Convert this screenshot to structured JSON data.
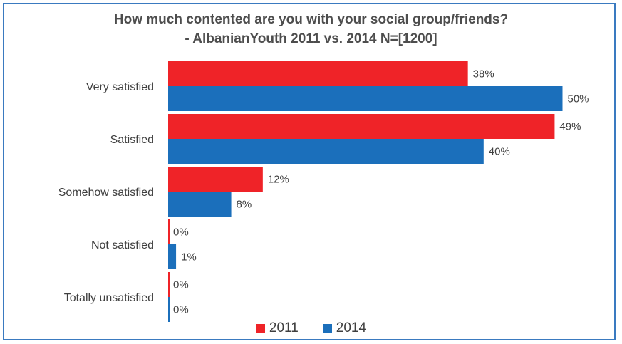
{
  "chart_data": {
    "type": "bar",
    "orientation": "horizontal",
    "title": "How much contented are you with your social group/friends?",
    "subtitle": "- AlbanianYouth 2011 vs. 2014 N=[1200]",
    "categories": [
      "Very satisfied",
      "Satisfied",
      "Somehow satisfied",
      "Not satisfied",
      "Totally unsatisfied"
    ],
    "series": [
      {
        "name": "2011",
        "color": "#ef2328",
        "values": [
          38,
          49,
          12,
          0,
          0
        ],
        "labels": [
          "38%",
          "49%",
          "12%",
          "0%",
          "0%"
        ]
      },
      {
        "name": "2014",
        "color": "#1b6fbb",
        "values": [
          50,
          40,
          8,
          1,
          0
        ],
        "labels": [
          "50%",
          "40%",
          "8%",
          "1%",
          "0%"
        ]
      }
    ],
    "xlim": [
      0,
      55
    ],
    "grid": false,
    "legend_position": "bottom"
  }
}
